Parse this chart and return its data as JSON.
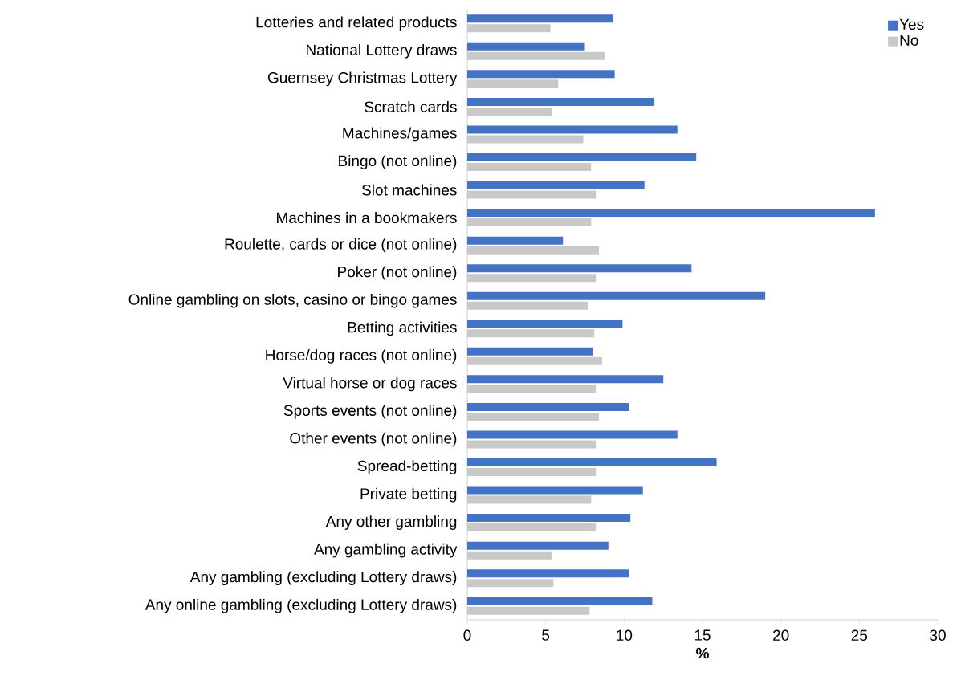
{
  "chart_data": {
    "type": "bar",
    "orientation": "horizontal",
    "xlabel": "%",
    "categories": [
      "Lotteries and related products",
      "National Lottery draws",
      "Guernsey Christmas Lottery",
      "Scratch cards",
      "Machines/games",
      "Bingo (not online)",
      "Slot machines",
      "Machines in a bookmakers",
      "Roulette, cards or dice (not online)",
      "Poker (not online)",
      "Online gambling on slots, casino or bingo games",
      "Betting activities",
      "Horse/dog races (not online)",
      "Virtual horse or dog races",
      "Sports events (not online)",
      "Other events (not online)",
      "Spread-betting",
      "Private betting",
      "Any other gambling",
      "Any gambling activity",
      "Any gambling (excluding Lottery draws)",
      "Any online gambling (excluding Lottery draws)"
    ],
    "series": [
      {
        "name": "Yes",
        "color": "#4472c4",
        "values": [
          9.3,
          7.5,
          9.4,
          11.9,
          13.4,
          14.6,
          11.3,
          26.0,
          6.1,
          14.3,
          19.0,
          9.9,
          8.0,
          12.5,
          10.3,
          13.4,
          15.9,
          11.2,
          10.4,
          9.0,
          10.3,
          11.8
        ]
      },
      {
        "name": "No",
        "color": "#c9c9c9",
        "values": [
          5.3,
          8.8,
          5.8,
          5.4,
          7.4,
          7.9,
          8.2,
          7.9,
          8.4,
          8.2,
          7.7,
          8.1,
          8.6,
          8.2,
          8.4,
          8.2,
          8.2,
          7.9,
          8.2,
          5.4,
          5.5,
          7.8
        ]
      }
    ],
    "xlim": [
      0,
      30
    ],
    "xticks": [
      0,
      5,
      10,
      15,
      20,
      25,
      30
    ],
    "grid": false,
    "legend": "top right"
  }
}
